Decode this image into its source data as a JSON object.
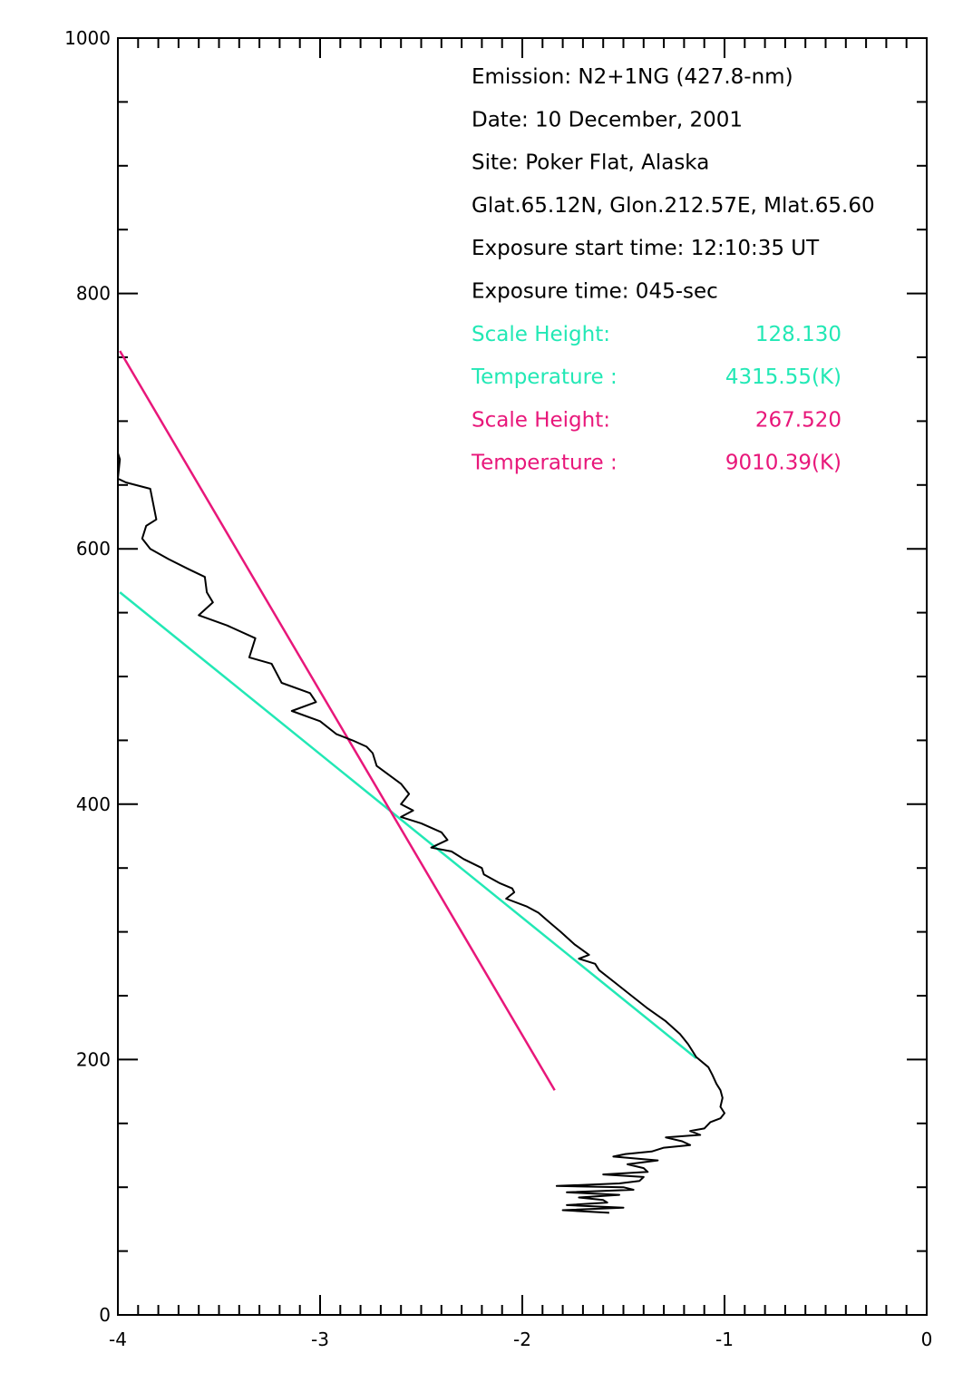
{
  "chart_data": {
    "type": "line",
    "title": "",
    "xlabel": "",
    "ylabel": "",
    "xlim": [
      -4,
      0
    ],
    "ylim": [
      0,
      1000
    ],
    "x_ticks": [
      "-4",
      "-3",
      "-2",
      "-1",
      "0"
    ],
    "y_ticks": [
      "0",
      "200",
      "400",
      "600",
      "800",
      "1000"
    ],
    "grid": false,
    "colors": {
      "profile": "#000000",
      "fit1": "#22e8b5",
      "fit2": "#e8177a"
    },
    "annotations": [
      {
        "text": "Emission: N2+1NG (427.8-nm)",
        "color": "#000000"
      },
      {
        "text": "Date: 10 December, 2001",
        "color": "#000000"
      },
      {
        "text": "Site: Poker Flat, Alaska",
        "color": "#000000"
      },
      {
        "text": "Glat.65.12N, Glon.212.57E, Mlat.65.60",
        "color": "#000000"
      },
      {
        "text": "Exposure start time: 12:10:35 UT",
        "color": "#000000"
      },
      {
        "text": "Exposure time: 045-sec",
        "color": "#000000"
      },
      {
        "label": "Scale Height:",
        "value": "128.130",
        "color": "#22e8b5"
      },
      {
        "label": "Temperature :",
        "value": "4315.55(K)",
        "color": "#22e8b5"
      },
      {
        "label": "Scale Height:",
        "value": "267.520",
        "color": "#e8177a"
      },
      {
        "label": "Temperature :",
        "value": "9010.39(K)",
        "color": "#e8177a"
      }
    ],
    "series": [
      {
        "color": "#000000",
        "points": [
          [
            -4.0,
            675
          ],
          [
            -3.99,
            670
          ],
          [
            -4.0,
            655
          ],
          [
            -3.96,
            652
          ],
          [
            -3.84,
            647
          ],
          [
            -3.81,
            623
          ],
          [
            -3.86,
            618
          ],
          [
            -3.88,
            608
          ],
          [
            -3.84,
            600
          ],
          [
            -3.75,
            592
          ],
          [
            -3.65,
            584
          ],
          [
            -3.57,
            578
          ],
          [
            -3.56,
            566
          ],
          [
            -3.53,
            558
          ],
          [
            -3.6,
            548
          ],
          [
            -3.46,
            540
          ],
          [
            -3.32,
            530
          ],
          [
            -3.35,
            515
          ],
          [
            -3.24,
            510
          ],
          [
            -3.19,
            495
          ],
          [
            -3.05,
            487
          ],
          [
            -3.02,
            480
          ],
          [
            -3.14,
            473
          ],
          [
            -3.0,
            465
          ],
          [
            -2.92,
            455
          ],
          [
            -2.84,
            450
          ],
          [
            -2.77,
            445
          ],
          [
            -2.74,
            440
          ],
          [
            -2.72,
            430
          ],
          [
            -2.66,
            423
          ],
          [
            -2.6,
            416
          ],
          [
            -2.56,
            408
          ],
          [
            -2.6,
            400
          ],
          [
            -2.54,
            395
          ],
          [
            -2.6,
            390
          ],
          [
            -2.5,
            385
          ],
          [
            -2.4,
            378
          ],
          [
            -2.37,
            372
          ],
          [
            -2.45,
            366
          ],
          [
            -2.35,
            363
          ],
          [
            -2.29,
            357
          ],
          [
            -2.2,
            350
          ],
          [
            -2.19,
            345
          ],
          [
            -2.11,
            338
          ],
          [
            -2.05,
            334
          ],
          [
            -2.04,
            331
          ],
          [
            -2.08,
            326
          ],
          [
            -1.98,
            320
          ],
          [
            -1.92,
            315
          ],
          [
            -1.87,
            308
          ],
          [
            -1.81,
            300
          ],
          [
            -1.74,
            290
          ],
          [
            -1.67,
            282
          ],
          [
            -1.72,
            279
          ],
          [
            -1.64,
            275
          ],
          [
            -1.62,
            270
          ],
          [
            -1.54,
            260
          ],
          [
            -1.46,
            250
          ],
          [
            -1.38,
            240
          ],
          [
            -1.29,
            230
          ],
          [
            -1.22,
            220
          ],
          [
            -1.18,
            212
          ],
          [
            -1.14,
            202
          ],
          [
            -1.08,
            194
          ],
          [
            -1.06,
            188
          ],
          [
            -1.04,
            181
          ],
          [
            -1.02,
            176
          ],
          [
            -1.01,
            170
          ],
          [
            -1.02,
            163
          ],
          [
            -1.0,
            158
          ],
          [
            -1.02,
            154
          ],
          [
            -1.07,
            151
          ],
          [
            -1.1,
            146
          ],
          [
            -1.17,
            144
          ],
          [
            -1.12,
            141
          ],
          [
            -1.29,
            139
          ],
          [
            -1.21,
            136
          ],
          [
            -1.17,
            133
          ],
          [
            -1.3,
            131
          ],
          [
            -1.36,
            128
          ],
          [
            -1.49,
            126
          ],
          [
            -1.55,
            124
          ],
          [
            -1.33,
            121
          ],
          [
            -1.48,
            118
          ],
          [
            -1.4,
            115
          ],
          [
            -1.38,
            112
          ],
          [
            -1.6,
            110
          ],
          [
            -1.4,
            108
          ],
          [
            -1.42,
            105
          ],
          [
            -1.52,
            103
          ],
          [
            -1.83,
            101
          ],
          [
            -1.5,
            100
          ],
          [
            -1.45,
            98
          ],
          [
            -1.78,
            96
          ],
          [
            -1.52,
            94
          ],
          [
            -1.72,
            92
          ],
          [
            -1.6,
            90
          ],
          [
            -1.58,
            88
          ],
          [
            -1.78,
            86
          ],
          [
            -1.5,
            84
          ],
          [
            -1.8,
            82
          ],
          [
            -1.57,
            80
          ]
        ]
      },
      {
        "color": "#22e8b5",
        "x": [
          -3.99,
          -1.14
        ],
        "y": [
          566,
          201
        ]
      },
      {
        "color": "#e8177a",
        "x": [
          -3.99,
          -1.84
        ],
        "y": [
          755,
          176
        ]
      }
    ]
  }
}
